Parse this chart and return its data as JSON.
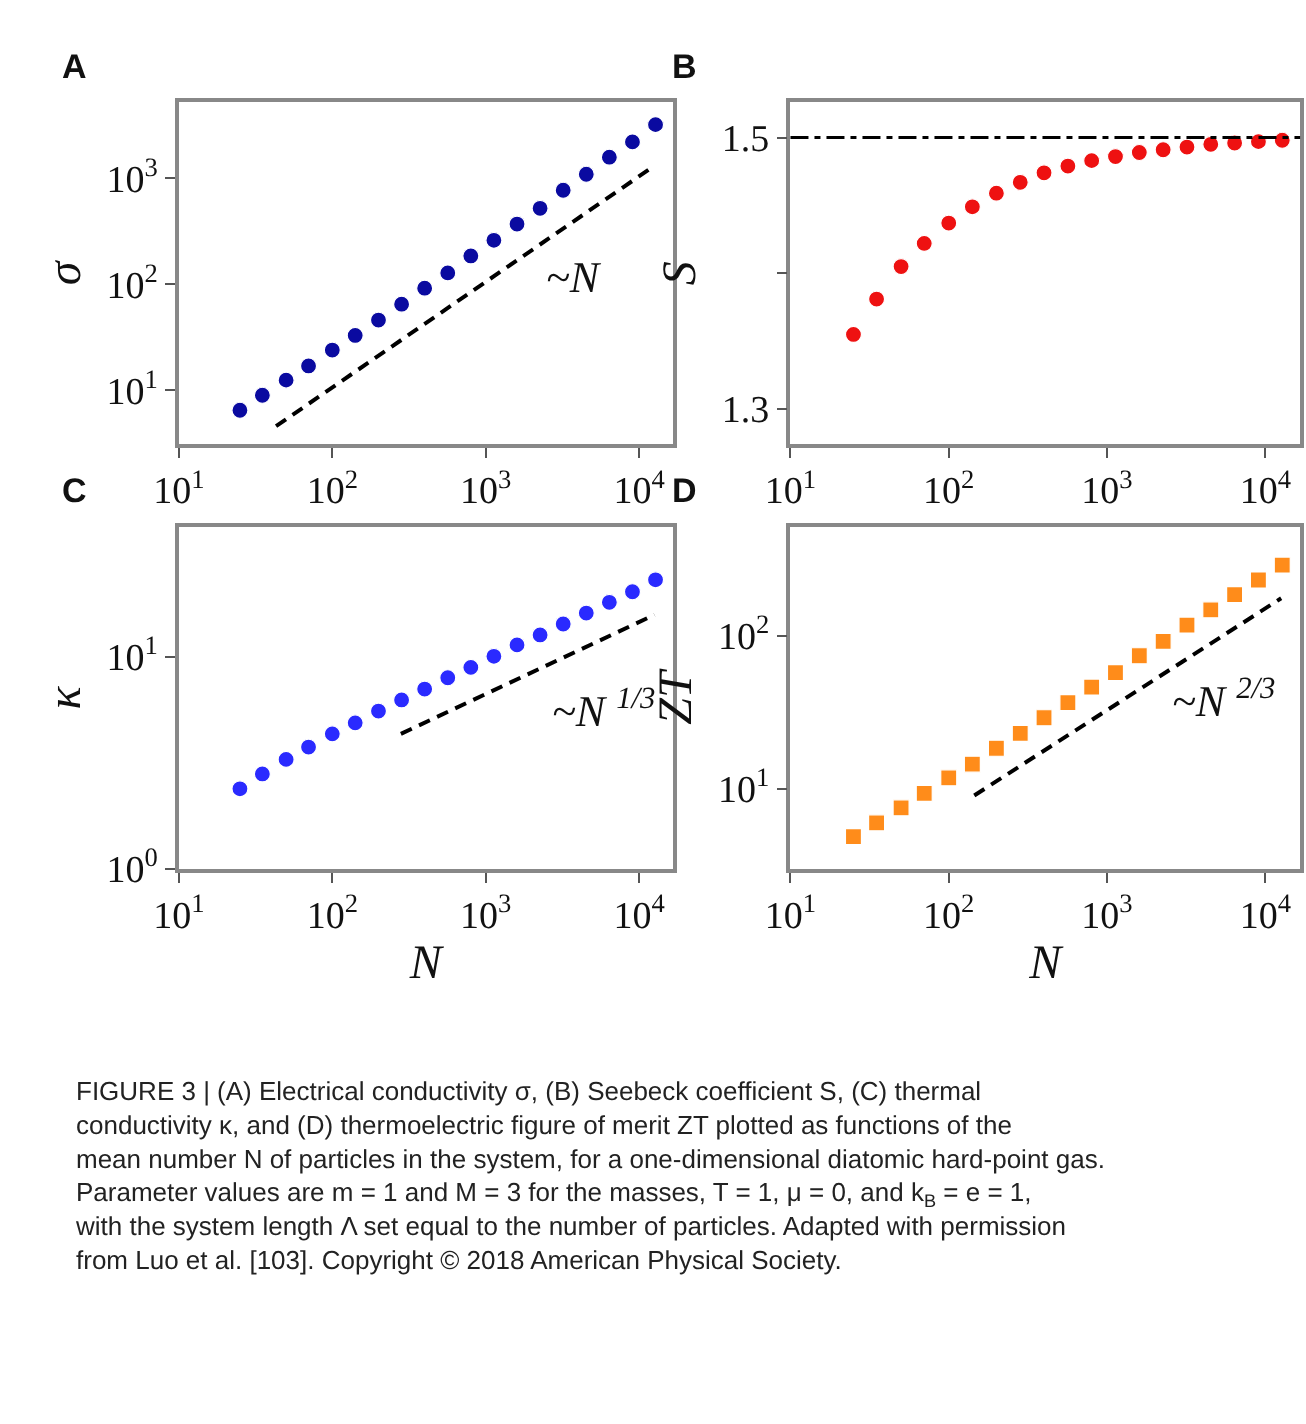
{
  "chart_data": [
    {
      "type": "scatter",
      "title": "A",
      "ylabel": "σ",
      "log": "xy",
      "xlim": [
        10,
        16600
      ],
      "ylim": [
        3.1,
        5200
      ],
      "xticks": [
        {
          "value": 10,
          "label": "10$^{1}$"
        },
        {
          "value": 100,
          "label": "10$^{2}$"
        },
        {
          "value": 1000,
          "label": "10$^{3}$"
        },
        {
          "value": 10000,
          "label": "10$^{4}$"
        }
      ],
      "yticks": [
        {
          "value": 10,
          "label": "10$^{1}$"
        },
        {
          "value": 100,
          "label": "10$^{2}$"
        },
        {
          "value": 1000,
          "label": "10$^{3}$"
        }
      ],
      "x": [
        25,
        35,
        50,
        70,
        100,
        141,
        200,
        283,
        400,
        566,
        800,
        1131,
        1600,
        2263,
        3200,
        4525,
        6400,
        9051,
        12800
      ],
      "series": [
        {
          "color": "#0a0aa0",
          "marker": "circle",
          "values": [
            6.5,
            9,
            12.5,
            17,
            24,
            33,
            46,
            65,
            92,
            128,
            185,
            260,
            370,
            520,
            770,
            1090,
            1580,
            2200,
            3200
          ]
        },
        {
          "type": "line",
          "color": "#000000",
          "marker": "none",
          "line_style": "dashed",
          "x": [
            43,
            12000
          ],
          "values": [
            4.6,
            1250
          ]
        }
      ],
      "annotations": [
        "~N"
      ]
    },
    {
      "type": "scatter",
      "title": "B",
      "ylabel": "S",
      "log": "x",
      "xlim": [
        10,
        16600
      ],
      "ylim": [
        1.274,
        1.526
      ],
      "xticks": [
        {
          "value": 10,
          "label": "10$^{1}$"
        },
        {
          "value": 100,
          "label": "10$^{2}$"
        },
        {
          "value": 1000,
          "label": "10$^{3}$"
        },
        {
          "value": 10000,
          "label": "10$^{4}$"
        }
      ],
      "yticks": [
        1.3,
        {
          "value": 1.4,
          "label": null
        },
        1.5
      ],
      "x": [
        25,
        35,
        50,
        70,
        100,
        141,
        200,
        283,
        400,
        566,
        800,
        1131,
        1600,
        2263,
        3200,
        4525,
        6400,
        9051,
        12800
      ],
      "series": [
        {
          "color": "#ee1111",
          "marker": "circle",
          "values": [
            1.355,
            1.381,
            1.405,
            1.422,
            1.437,
            1.449,
            1.459,
            1.467,
            1.474,
            1.479,
            1.483,
            1.486,
            1.489,
            1.491,
            1.493,
            1.495,
            1.496,
            1.497,
            1.498
          ]
        }
      ],
      "ref_lines": [
        {
          "axis": "y",
          "value": 1.5,
          "color": "#000000",
          "line_style": "dashdot"
        }
      ]
    },
    {
      "type": "scatter",
      "title": "C",
      "ylabel": "κ",
      "xlabel": "N",
      "log": "xy",
      "xlim": [
        10,
        16600
      ],
      "ylim": [
        1,
        41
      ],
      "xticks": [
        {
          "value": 10,
          "label": "10$^{1}$"
        },
        {
          "value": 100,
          "label": "10$^{2}$"
        },
        {
          "value": 1000,
          "label": "10$^{3}$"
        },
        {
          "value": 10000,
          "label": "10$^{4}$"
        }
      ],
      "yticks": [
        {
          "value": 1,
          "label": "10$^{0}$"
        },
        {
          "value": 10,
          "label": "10$^{1}$"
        }
      ],
      "x": [
        25,
        35,
        50,
        70,
        100,
        141,
        200,
        283,
        400,
        566,
        800,
        1131,
        1600,
        2263,
        3200,
        4525,
        6400,
        9051,
        12800
      ],
      "series": [
        {
          "color": "#2a2aff",
          "marker": "circle",
          "values": [
            2.39,
            2.81,
            3.29,
            3.76,
            4.34,
            4.89,
            5.56,
            6.27,
            7.06,
            7.98,
            8.93,
            10.07,
            11.4,
            12.7,
            14.3,
            16.1,
            18.1,
            20.3,
            23.1
          ]
        },
        {
          "type": "line",
          "color": "#000000",
          "marker": "none",
          "line_style": "dashed",
          "x": [
            280,
            12600
          ],
          "values": [
            4.34,
            15.8
          ]
        }
      ],
      "annotations": [
        "~N $^{1/3}$"
      ]
    },
    {
      "type": "scatter",
      "title": "D",
      "ylabel": "ZT",
      "xlabel": "N",
      "log": "xy",
      "xlim": [
        10,
        16600
      ],
      "ylim": [
        3.0,
        510
      ],
      "xticks": [
        {
          "value": 10,
          "label": "10$^{1}$"
        },
        {
          "value": 100,
          "label": "10$^{2}$"
        },
        {
          "value": 1000,
          "label": "10$^{3}$"
        },
        {
          "value": 10000,
          "label": "10$^{4}$"
        }
      ],
      "yticks": [
        {
          "value": 10,
          "label": "10$^{1}$"
        },
        {
          "value": 100,
          "label": "10$^{2}$"
        }
      ],
      "x": [
        25,
        35,
        50,
        70,
        100,
        141,
        200,
        283,
        400,
        566,
        800,
        1131,
        1600,
        2263,
        3200,
        4525,
        6400,
        9051,
        12800
      ],
      "series": [
        {
          "color": "#ff8c1a",
          "marker": "square",
          "values": [
            4.89,
            6.01,
            7.53,
            9.34,
            11.8,
            14.5,
            18.4,
            23.0,
            29.1,
            36.5,
            46.1,
            57.2,
            73.8,
            91.6,
            117,
            147,
            185,
            230,
            288
          ]
        },
        {
          "type": "line",
          "color": "#000000",
          "marker": "none",
          "line_style": "dashed",
          "x": [
            145,
            12600
          ],
          "values": [
            9.06,
            175
          ]
        }
      ],
      "annotations": [
        "~N $^{2/3}$",
        "FIGURE 3 | (A) Electrical conductivity σ, (B) Seebeck coefficient S, (C) thermal conductivity κ, and (D) thermoelectric figure of merit ZT plotted as functions of the mean number N of particles in the system, for a one-dimensional diatomic hard-point gas. Parameter values are m = 1 and M = 3 for the masses, T = 1, μ = 0, and k$_{B}$ = e = 1, with the system length Λ set equal to the number of particles. Adapted with permission from Luo et al. [103]. Copyright © 2018 American Physical Society."
      ]
    }
  ]
}
